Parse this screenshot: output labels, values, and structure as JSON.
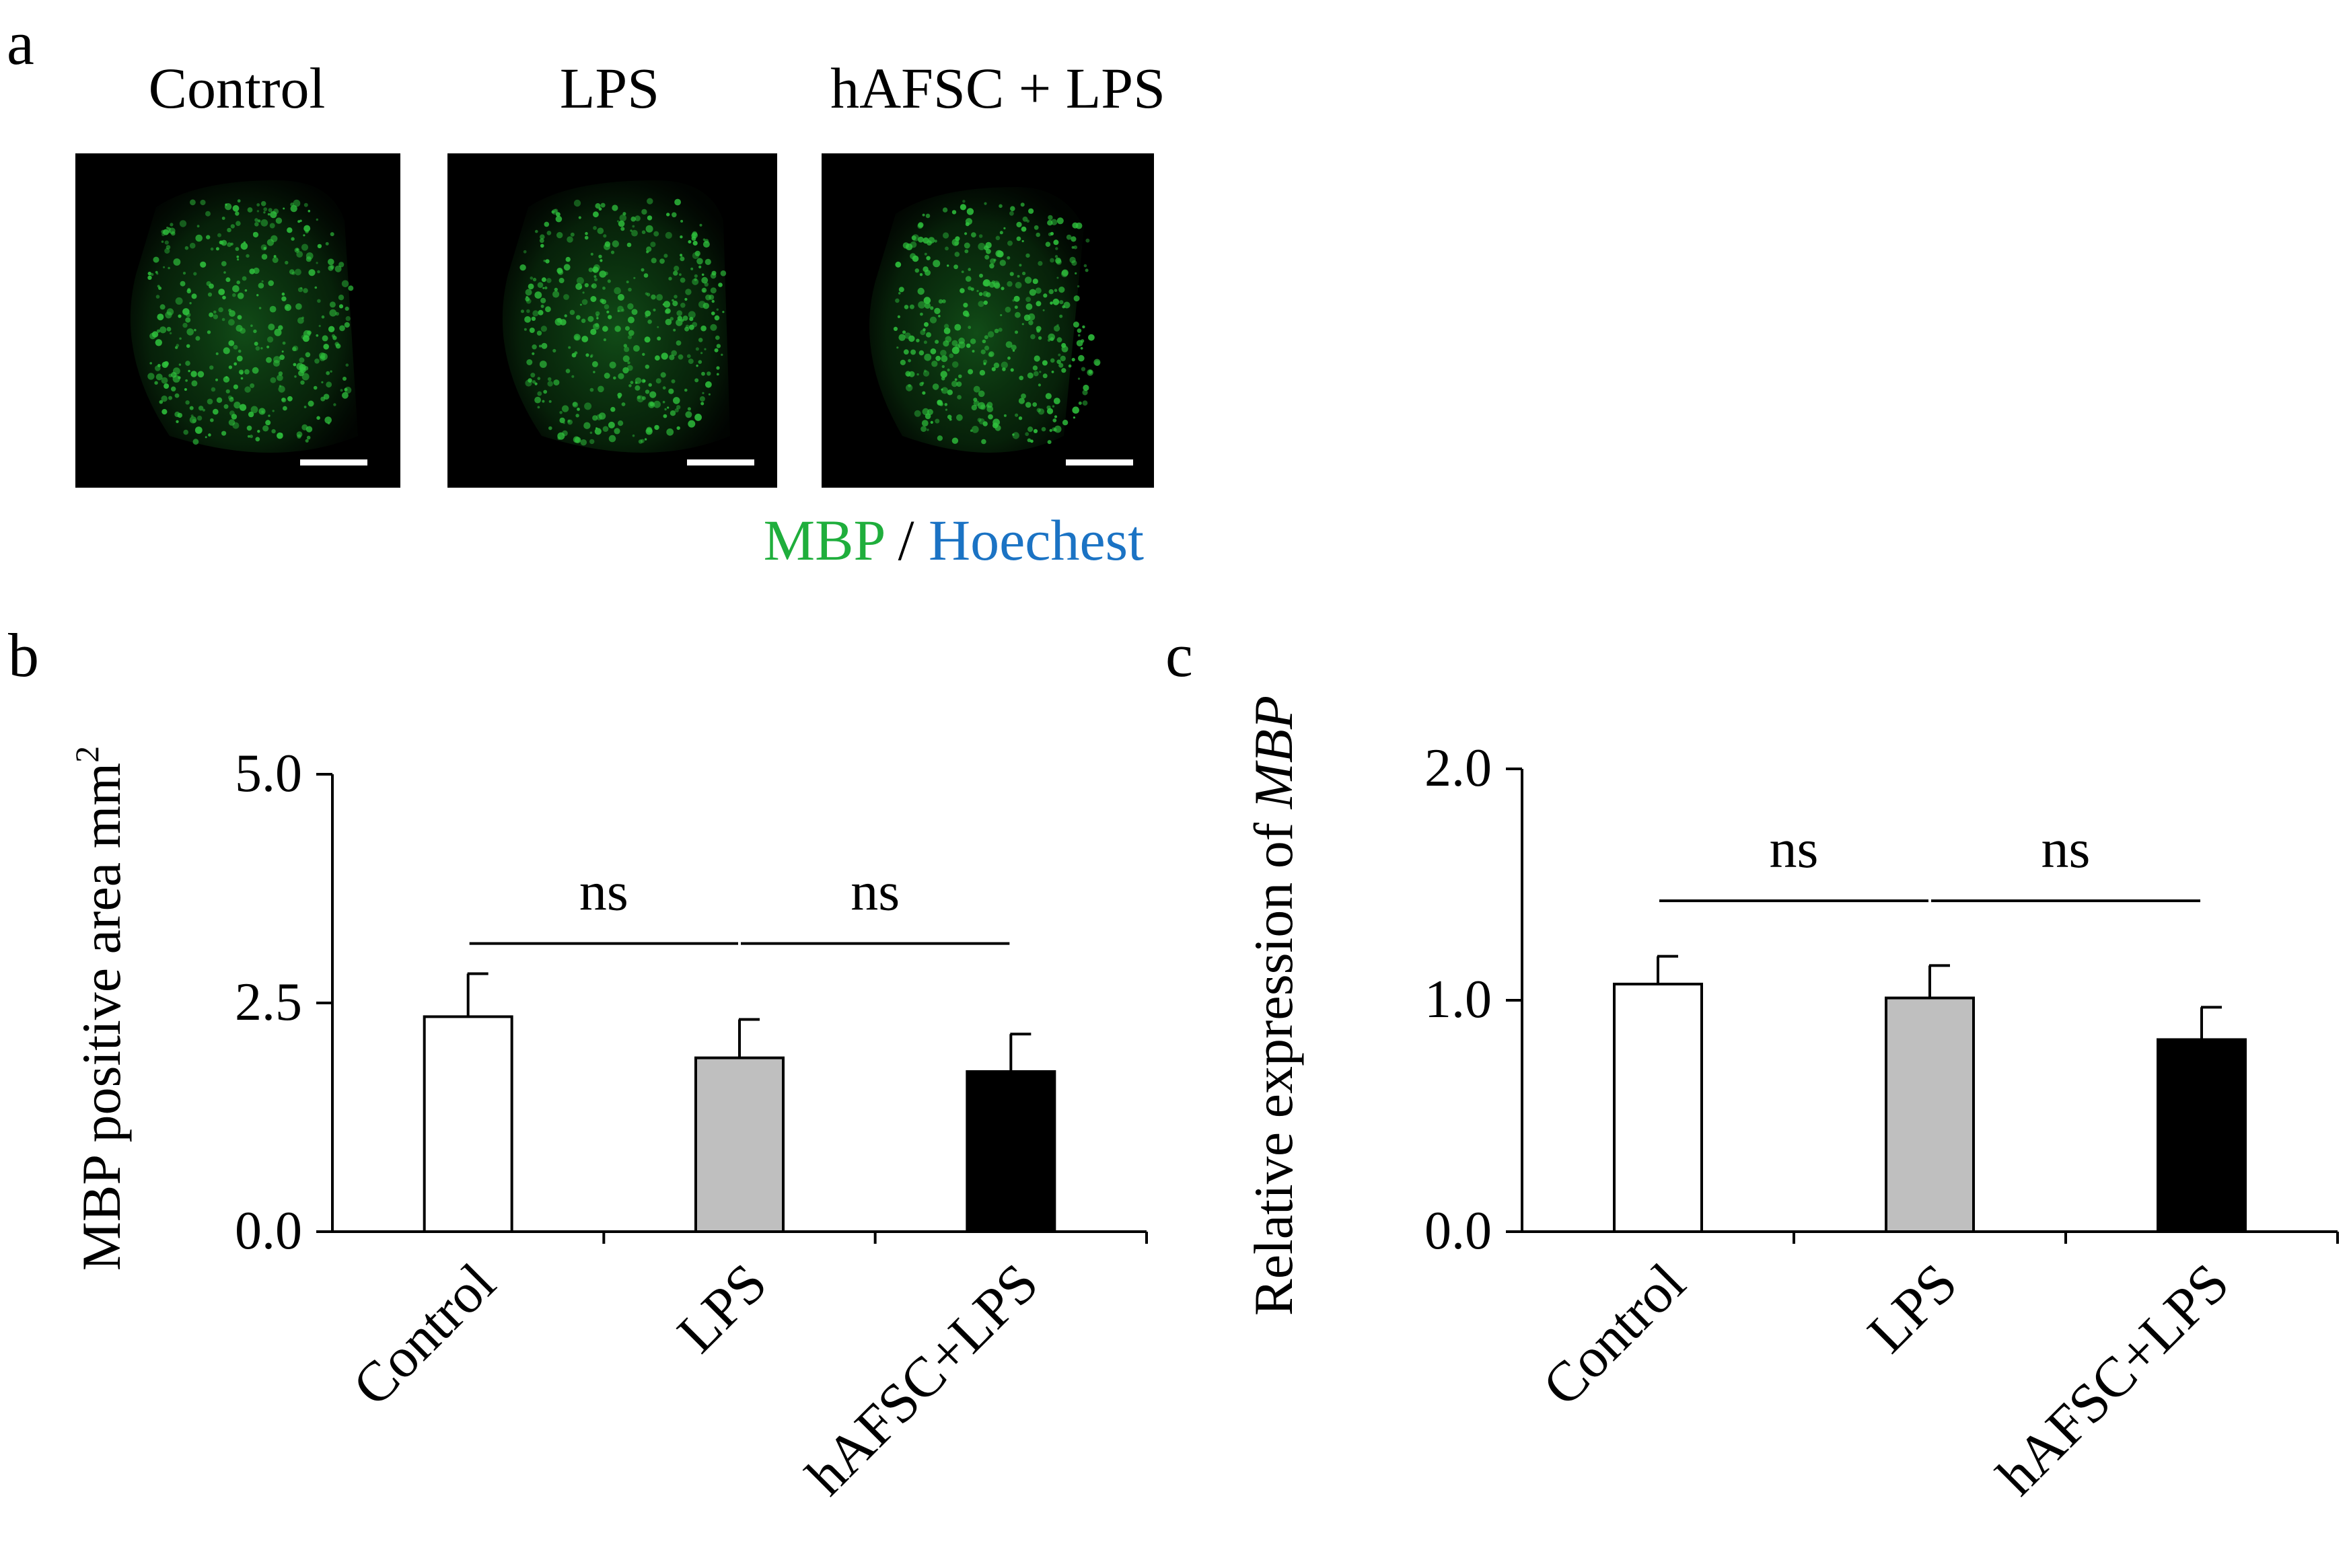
{
  "panel_a": {
    "label": "a",
    "titles": [
      "Control",
      "LPS",
      "hAFSC + LPS"
    ],
    "stain_primary": "MBP",
    "stain_separator": " / ",
    "stain_secondary": "Hoechest",
    "stain_primary_color": "#1fae3c",
    "stain_secondary_color": "#1b73c4",
    "image_color": "#1f8a2a"
  },
  "chart_data": [
    {
      "panel": "b",
      "type": "bar",
      "categories": [
        "Control",
        "LPS",
        "hAFSC+LPS"
      ],
      "values": [
        2.35,
        1.9,
        1.75
      ],
      "errors": [
        0.47,
        0.42,
        0.41
      ],
      "bar_colors": [
        "#ffffff",
        "#bfbfbf",
        "#000000"
      ],
      "ylabel": "MBP positive area mm",
      "ylabel_superscript": "2",
      "ylabel_italic_part": "",
      "ylim": [
        0,
        5.0
      ],
      "yticks": [
        0.0,
        2.5,
        5.0
      ],
      "ytick_labels": [
        "0.0",
        "2.5",
        "5.0"
      ],
      "significance": [
        {
          "from": 0,
          "to": 1,
          "label": "ns",
          "y": 3.15
        },
        {
          "from": 1,
          "to": 2,
          "label": "ns",
          "y": 3.15
        }
      ]
    },
    {
      "panel": "c",
      "type": "bar",
      "categories": [
        "Control",
        "LPS",
        "hAFSC+LPS"
      ],
      "values": [
        1.07,
        1.01,
        0.83
      ],
      "errors": [
        0.12,
        0.14,
        0.14
      ],
      "bar_colors": [
        "#ffffff",
        "#bfbfbf",
        "#000000"
      ],
      "ylabel": "Relative expression of ",
      "ylabel_superscript": "",
      "ylabel_italic_part": "MBP",
      "ylim": [
        0,
        2.0
      ],
      "yticks": [
        0.0,
        1.0,
        2.0
      ],
      "ytick_labels": [
        "0.0",
        "1.0",
        "2.0"
      ],
      "significance": [
        {
          "from": 0,
          "to": 1,
          "label": "ns",
          "y": 1.43
        },
        {
          "from": 1,
          "to": 2,
          "label": "ns",
          "y": 1.43
        }
      ]
    }
  ]
}
